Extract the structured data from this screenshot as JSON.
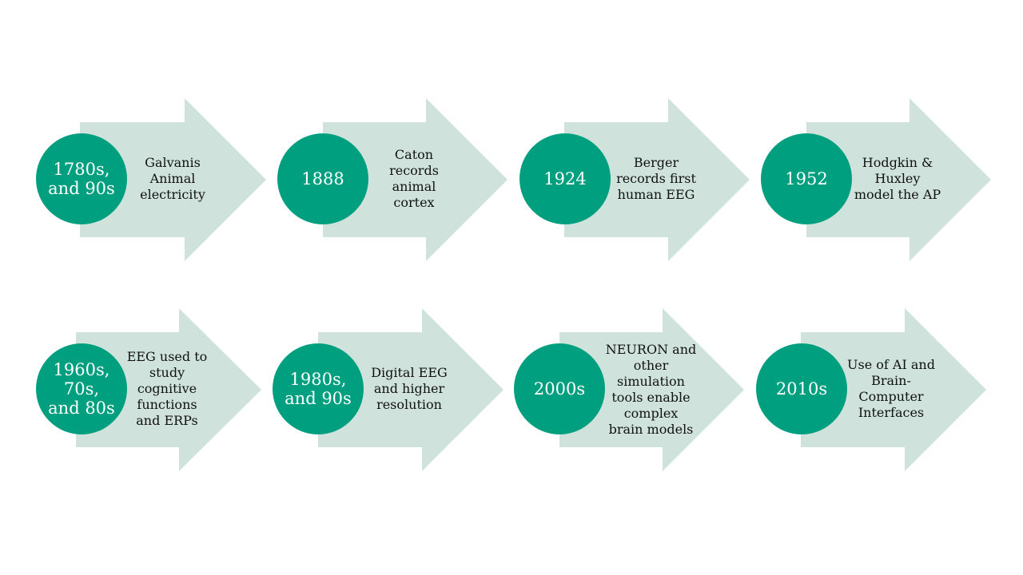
{
  "colors": {
    "arrow_fill": "#cfe3dc",
    "circle_fill": "#009f7f",
    "circle_text": "#ffffff",
    "desc_text": "#111111",
    "background": "#ffffff"
  },
  "timeline": [
    {
      "year": "1780s,\nand 90s",
      "description": "Galvanis\nAnimal\nelectricity"
    },
    {
      "year": "1888",
      "description": "Caton\nrecords\nanimal\ncortex"
    },
    {
      "year": "1924",
      "description": "Berger\nrecords first\nhuman EEG"
    },
    {
      "year": "1952",
      "description": "Hodgkin &\nHuxley\nmodel the AP"
    },
    {
      "year": "1960s,\n70s,\nand 80s",
      "description": "EEG used to\nstudy\ncognitive\nfunctions\nand ERPs"
    },
    {
      "year": "1980s,\nand 90s",
      "description": "Digital EEG\nand higher\nresolution"
    },
    {
      "year": "2000s",
      "description": "NEURON and\nother\nsimulation\ntools enable\ncomplex\nbrain models"
    },
    {
      "year": "2010s",
      "description": "Use of AI and\nBrain-\nComputer\nInterfaces"
    }
  ]
}
